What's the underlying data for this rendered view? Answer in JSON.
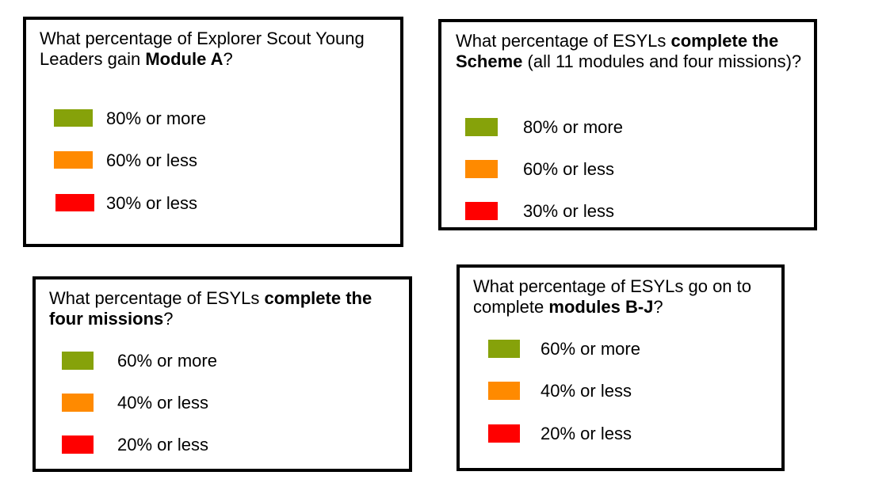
{
  "colors": {
    "green": "#86a20a",
    "orange": "#ff8a00",
    "red": "#ff0000"
  },
  "panels": [
    {
      "question": [
        {
          "text": "What percentage of Explorer Scout Young Leaders gain ",
          "bold": false
        },
        {
          "text": "Module A",
          "bold": true
        },
        {
          "text": "?",
          "bold": false
        }
      ],
      "legend": [
        {
          "label": "80% or more",
          "color": "#86a20a"
        },
        {
          "label": "60% or less",
          "color": "#ff8a00"
        },
        {
          "label": "30% or less",
          "color": "#ff0000"
        }
      ]
    },
    {
      "question": [
        {
          "text": "What percentage of ESYLs ",
          "bold": false
        },
        {
          "text": "complete the Scheme",
          "bold": true
        },
        {
          "text": " (all 11 modules and four missions)?",
          "bold": false
        }
      ],
      "legend": [
        {
          "label": "80% or more",
          "color": "#86a20a"
        },
        {
          "label": "60% or less",
          "color": "#ff8a00"
        },
        {
          "label": "30% or less",
          "color": "#ff0000"
        }
      ]
    },
    {
      "question": [
        {
          "text": "What percentage of ESYLs ",
          "bold": false
        },
        {
          "text": "complete the four missions",
          "bold": true
        },
        {
          "text": "?",
          "bold": false
        }
      ],
      "legend": [
        {
          "label": "60% or more",
          "color": "#86a20a"
        },
        {
          "label": "40% or less",
          "color": "#ff8a00"
        },
        {
          "label": "20% or less",
          "color": "#ff0000"
        }
      ]
    },
    {
      "question": [
        {
          "text": "What percentage of ESYLs go on to complete ",
          "bold": false
        },
        {
          "text": "modules B-J",
          "bold": true
        },
        {
          "text": "?",
          "bold": false
        }
      ],
      "legend": [
        {
          "label": "60% or more",
          "color": "#86a20a"
        },
        {
          "label": "40% or less",
          "color": "#ff8a00"
        },
        {
          "label": "20% or less",
          "color": "#ff0000"
        }
      ]
    }
  ]
}
